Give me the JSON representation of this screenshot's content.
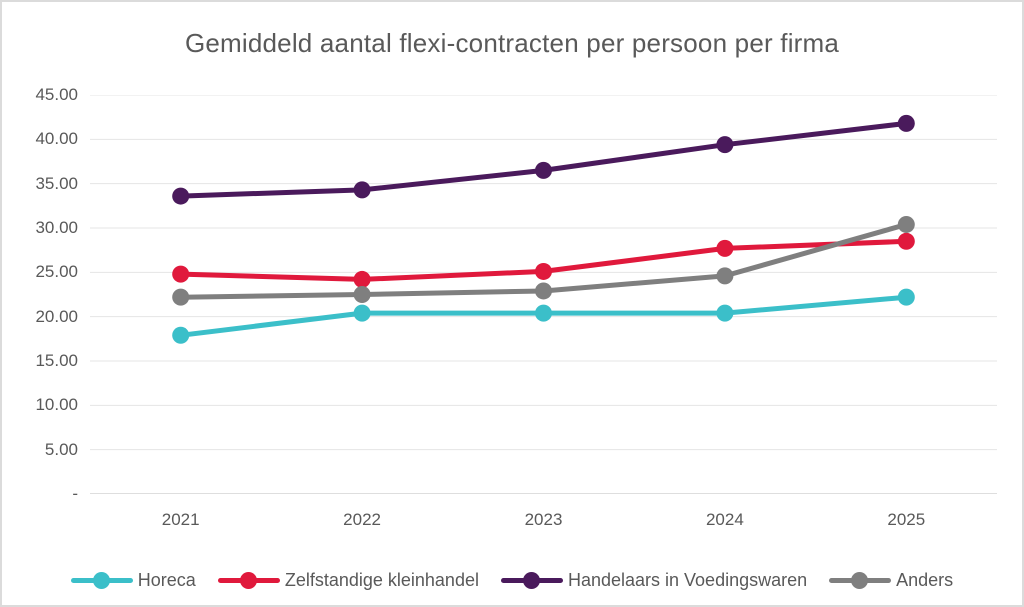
{
  "chart_data": {
    "type": "line",
    "title": "Gemiddeld aantal flexi-contracten per persoon per firma",
    "categories": [
      "2021",
      "2022",
      "2023",
      "2024",
      "2025"
    ],
    "series": [
      {
        "name": "Horeca",
        "color": "#3bbfc9",
        "values": [
          17.9,
          20.4,
          20.4,
          20.4,
          22.2
        ]
      },
      {
        "name": "Zelfstandige kleinhandel",
        "color": "#e0193c",
        "values": [
          24.8,
          24.2,
          25.1,
          27.7,
          28.5
        ]
      },
      {
        "name": "Handelaars in Voedingswaren",
        "color": "#4a1a5c",
        "values": [
          33.6,
          34.3,
          36.5,
          39.4,
          41.8
        ]
      },
      {
        "name": "Anders",
        "color": "#7f7f7f",
        "values": [
          22.2,
          22.5,
          22.9,
          24.6,
          30.4
        ]
      }
    ],
    "ylim": [
      0,
      45
    ],
    "y_tick_step": 5,
    "y_tick_labels": [
      "45.00",
      "40.00",
      "35.00",
      "30.00",
      "25.00",
      "20.00",
      "15.00",
      "10.00",
      "5.00",
      "-"
    ],
    "grid": "horizontal",
    "legend_position": "bottom"
  },
  "style": {
    "text_color": "#595959",
    "gridline_color": "#e4e4e4",
    "axis_line_color": "#d4d4d4",
    "background_color": "#ffffff",
    "border_color": "#dbdbdb"
  }
}
